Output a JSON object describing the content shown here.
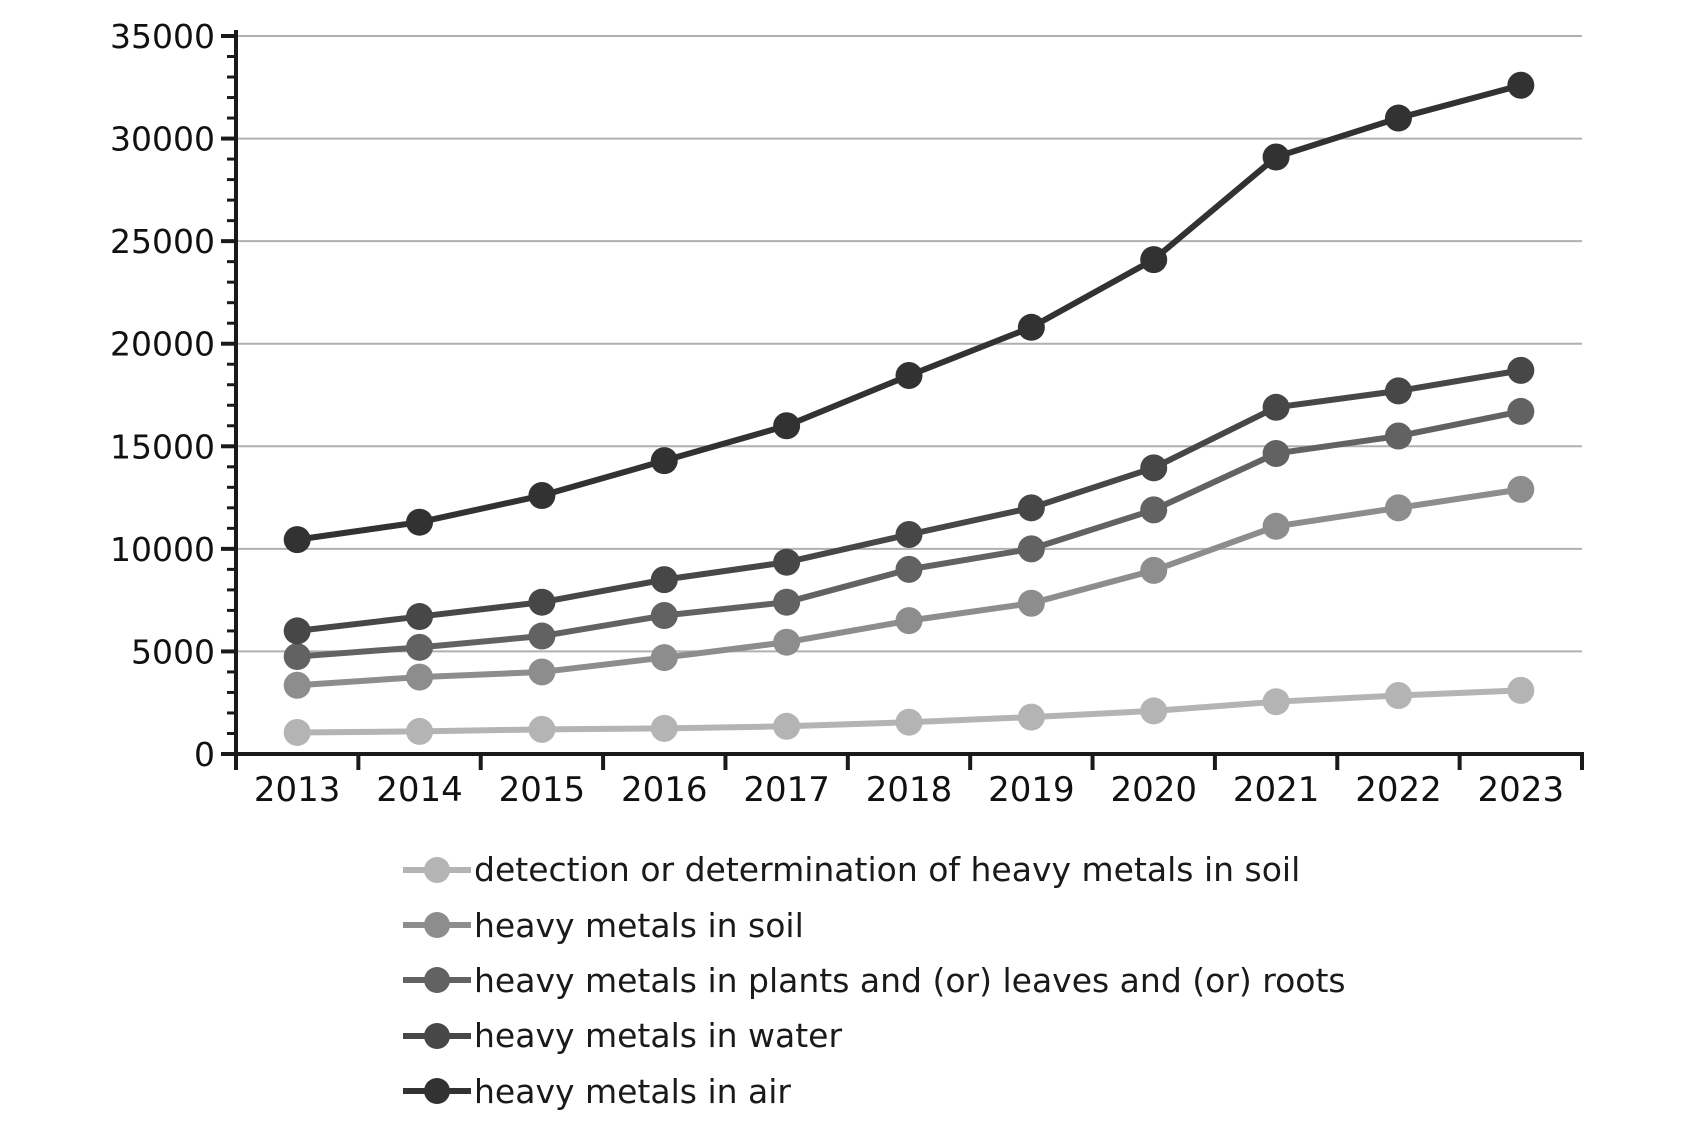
{
  "chart_data": {
    "type": "line",
    "title": "",
    "xlabel": "",
    "ylabel": "",
    "categories": [
      "2013",
      "2014",
      "2015",
      "2016",
      "2017",
      "2018",
      "2019",
      "2020",
      "2021",
      "2022",
      "2023"
    ],
    "series": [
      {
        "name": "detection or determination of heavy metals in soil",
        "color": "#b4b4b4",
        "values": [
          1050,
          1100,
          1200,
          1250,
          1350,
          1550,
          1800,
          2100,
          2550,
          2850,
          3100
        ]
      },
      {
        "name": "heavy metals in soil",
        "color": "#8d8d8d",
        "values": [
          3350,
          3750,
          4000,
          4700,
          5450,
          6500,
          7350,
          8950,
          11100,
          12000,
          12900
        ]
      },
      {
        "name": "heavy metals in plants and (or) leaves and (or) roots",
        "color": "#626262",
        "values": [
          4750,
          5200,
          5750,
          6750,
          7400,
          9000,
          10000,
          11900,
          14650,
          15500,
          16700
        ]
      },
      {
        "name": "heavy metals in water",
        "color": "#474747",
        "values": [
          6000,
          6700,
          7400,
          8500,
          9350,
          10700,
          12000,
          13950,
          16900,
          17700,
          18700
        ]
      },
      {
        "name": "heavy metals in air",
        "color": "#323232",
        "values": [
          10450,
          11300,
          12600,
          14300,
          16000,
          18450,
          20800,
          24100,
          29100,
          31000,
          32600
        ]
      }
    ],
    "ylim": [
      0,
      35000
    ],
    "y_major_step": 5000,
    "y_minor_step": 1000,
    "y_tick_labels": [
      "0",
      "5000",
      "10000",
      "15000",
      "20000",
      "25000",
      "30000",
      "35000"
    ],
    "grid": "horizontal",
    "grid_color": "#b0b0b0",
    "axis_color": "#1a1a1a",
    "tick_label_color": "#111111",
    "legend_position": "bottom-left",
    "marker": "circle"
  }
}
